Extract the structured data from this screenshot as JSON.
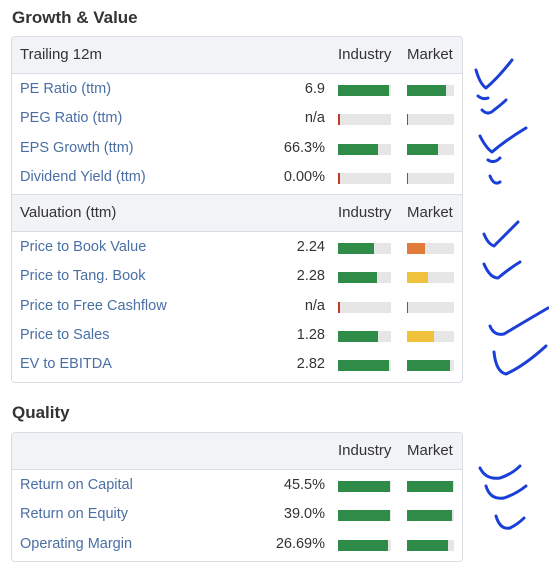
{
  "growth": {
    "title": "Growth & Value",
    "header1": {
      "label": "Trailing 12m",
      "industry": "Industry",
      "market": "Market"
    },
    "rows1": [
      {
        "label": "PE Ratio (ttm)",
        "value": "6.9",
        "industry": 0.97,
        "industry_color": "#2e8b48",
        "market": 0.82,
        "market_color": "#2e8b48"
      },
      {
        "label": "PEG Ratio (ttm)",
        "value": "n/a",
        "industry": 0.03,
        "industry_color": "#c0392b",
        "market": 0.03,
        "market_color": "#c0392b"
      },
      {
        "label": "EPS Growth (ttm)",
        "value": "66.3%",
        "industry": 0.76,
        "industry_color": "#2e8b48",
        "market": 0.66,
        "market_color": "#2e8b48"
      },
      {
        "label": "Dividend Yield (ttm)",
        "value": "0.00%",
        "industry": 0.03,
        "industry_color": "#c0392b",
        "market": 0.03,
        "market_color": "#c0392b"
      }
    ],
    "header2": {
      "label": "Valuation (ttm)",
      "industry": "Industry",
      "market": "Market"
    },
    "rows2": [
      {
        "label": "Price to Book Value",
        "value": "2.24",
        "industry": 0.68,
        "industry_color": "#2e8b48",
        "market": 0.38,
        "market_color": "#e07b39"
      },
      {
        "label": "Price to Tang. Book",
        "value": "2.28",
        "industry": 0.74,
        "industry_color": "#2e8b48",
        "market": 0.44,
        "market_color": "#f0c23b"
      },
      {
        "label": "Price to Free Cashflow",
        "value": "n/a",
        "industry": 0.03,
        "industry_color": "#c0392b",
        "market": 0.03,
        "market_color": "#c0392b"
      },
      {
        "label": "Price to Sales",
        "value": "1.28",
        "industry": 0.76,
        "industry_color": "#2e8b48",
        "market": 0.57,
        "market_color": "#f0c23b"
      },
      {
        "label": "EV to EBITDA",
        "value": "2.82",
        "industry": 0.97,
        "industry_color": "#2e8b48",
        "market": 0.91,
        "market_color": "#2e8b48"
      }
    ]
  },
  "quality": {
    "title": "Quality",
    "header": {
      "label": "",
      "industry": "Industry",
      "market": "Market"
    },
    "rows": [
      {
        "label": "Return on Capital",
        "value": "45.5%",
        "industry": 0.98,
        "industry_color": "#2e8b48",
        "market": 0.98,
        "market_color": "#2e8b48"
      },
      {
        "label": "Return on Equity",
        "value": "39.0%",
        "industry": 0.98,
        "industry_color": "#2e8b48",
        "market": 0.95,
        "market_color": "#2e8b48"
      },
      {
        "label": "Operating Margin",
        "value": "26.69%",
        "industry": 0.95,
        "industry_color": "#2e8b48",
        "market": 0.87,
        "market_color": "#2e8b48"
      }
    ]
  }
}
